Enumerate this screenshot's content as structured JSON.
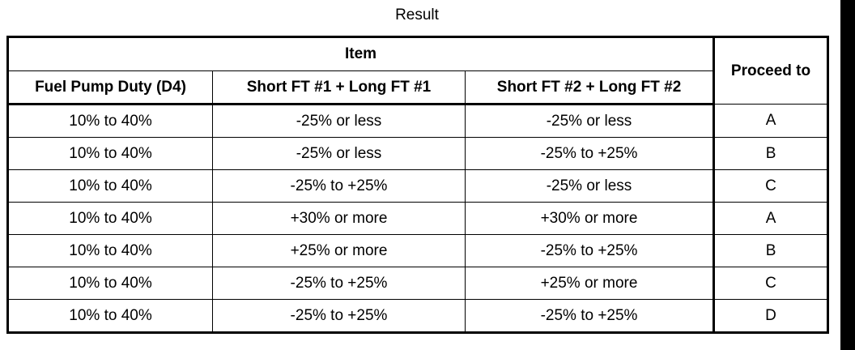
{
  "caption": "Result",
  "table": {
    "group_header": "Item",
    "proceed_header": "Proceed to",
    "columns": [
      "Fuel Pump Duty (D4)",
      "Short FT #1 + Long FT #1",
      "Short FT #2 + Long FT #2"
    ],
    "rows": [
      [
        "10% to 40%",
        "-25% or less",
        "-25% or less",
        "A"
      ],
      [
        "10% to 40%",
        "-25% or less",
        "-25% to +25%",
        "B"
      ],
      [
        "10% to 40%",
        "-25% to +25%",
        "-25% or less",
        "C"
      ],
      [
        "10% to 40%",
        "+30% or more",
        "+30% or more",
        "A"
      ],
      [
        "10% to 40%",
        "+25% or more",
        "-25% to +25%",
        "B"
      ],
      [
        "10% to 40%",
        "-25% to +25%",
        "+25% or more",
        "C"
      ],
      [
        "10% to 40%",
        "-25% to +25%",
        "-25% to +25%",
        "D"
      ]
    ]
  }
}
